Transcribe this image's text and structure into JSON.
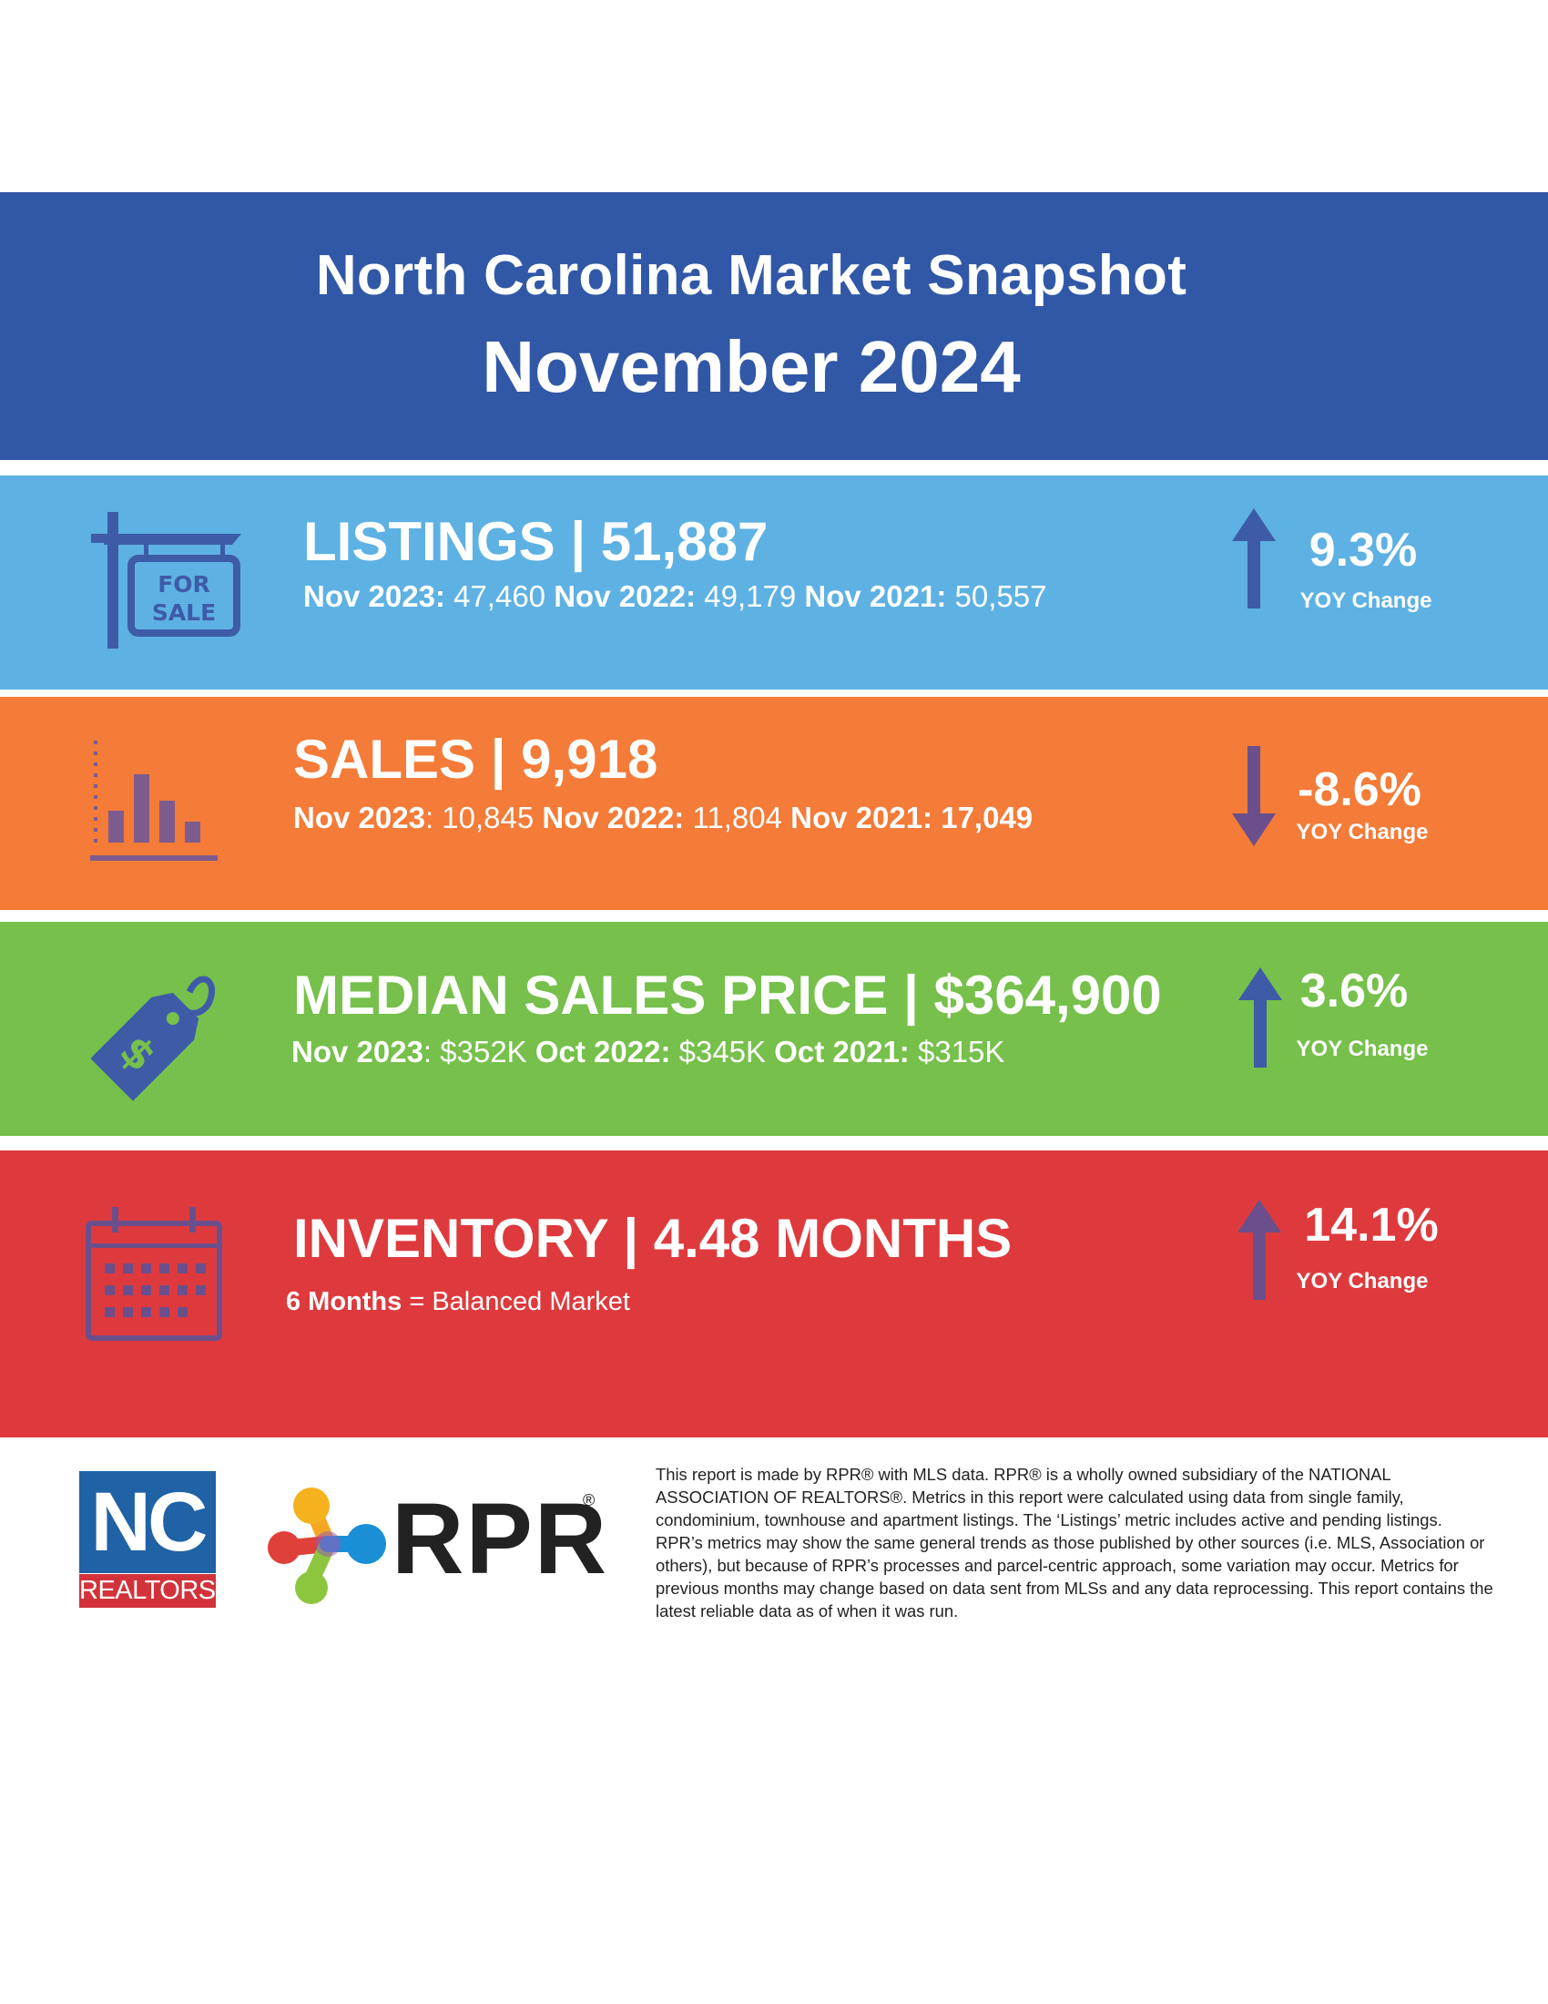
{
  "header": {
    "title": "North Carolina Market Snapshot",
    "date": "November 2024"
  },
  "listings": {
    "headline": "LISTINGS | 51,887",
    "icon": "for-sale-sign-icon",
    "icon_text_1": "FOR",
    "icon_text_2": "SALE",
    "history": [
      {
        "label": "Nov 2023:",
        "value": " 47,460"
      },
      {
        "label": " Nov 2022:",
        "value": " 49,179"
      },
      {
        "label": " Nov 2021:",
        "value": " 50,557"
      }
    ],
    "yoy_pct": "9.3%",
    "yoy_label": "YOY Change",
    "direction": "up",
    "color": "#5eb1e3"
  },
  "sales": {
    "headline": "SALES | 9,918",
    "icon": "bar-chart-icon",
    "history": [
      {
        "label": "Nov 2023",
        "value": ": 10,845"
      },
      {
        "label": " Nov 2022:",
        "value": " 11,804"
      },
      {
        "label": " Nov 2021: 17,049",
        "value": ""
      }
    ],
    "yoy_pct": "-8.6%",
    "yoy_label": "YOY Change",
    "direction": "down",
    "color": "#f47b38"
  },
  "price": {
    "headline": "MEDIAN SALES PRICE | $364,900",
    "icon": "price-tag-icon",
    "history": [
      {
        "label": "Nov 2023",
        "value": ": $352K"
      },
      {
        "label": " Oct 2022:",
        "value": " $345K "
      },
      {
        "label": " Oct 2021:",
        "value": " $315K"
      }
    ],
    "yoy_pct": "3.6%",
    "yoy_label": "YOY Change",
    "direction": "up",
    "color": "#76c04b"
  },
  "inventory": {
    "headline": "INVENTORY | 4.48 MONTHS",
    "icon": "calendar-icon",
    "note_bold": "6 Months",
    "note_rest": " = Balanced Market",
    "yoy_pct": "14.1%",
    "yoy_label": "YOY Change",
    "direction": "up",
    "color": "#de3a3d"
  },
  "footer": {
    "nc_logo_top": "NC",
    "nc_logo_bottom": "REALTORS",
    "rpr_logo": "RPR",
    "disclaimer": "This report is made by RPR® with MLS data. RPR® is a wholly owned subsidiary of the NATIONAL ASSOCIATION OF REALTORS®. Metrics in this report were calculated using data from single family, condominium, townhouse and apartment listings. The ‘Listings’ metric includes active and pending listings. RPR’s metrics may show the same general trends as those published by other sources (i.e. MLS, Association or others), but because of RPR’s processes and parcel-centric approach, some variation may occur. Metrics for previous months may change based on data sent from MLSs and any data reprocessing. This report contains the latest reliable data as of when it was run."
  }
}
